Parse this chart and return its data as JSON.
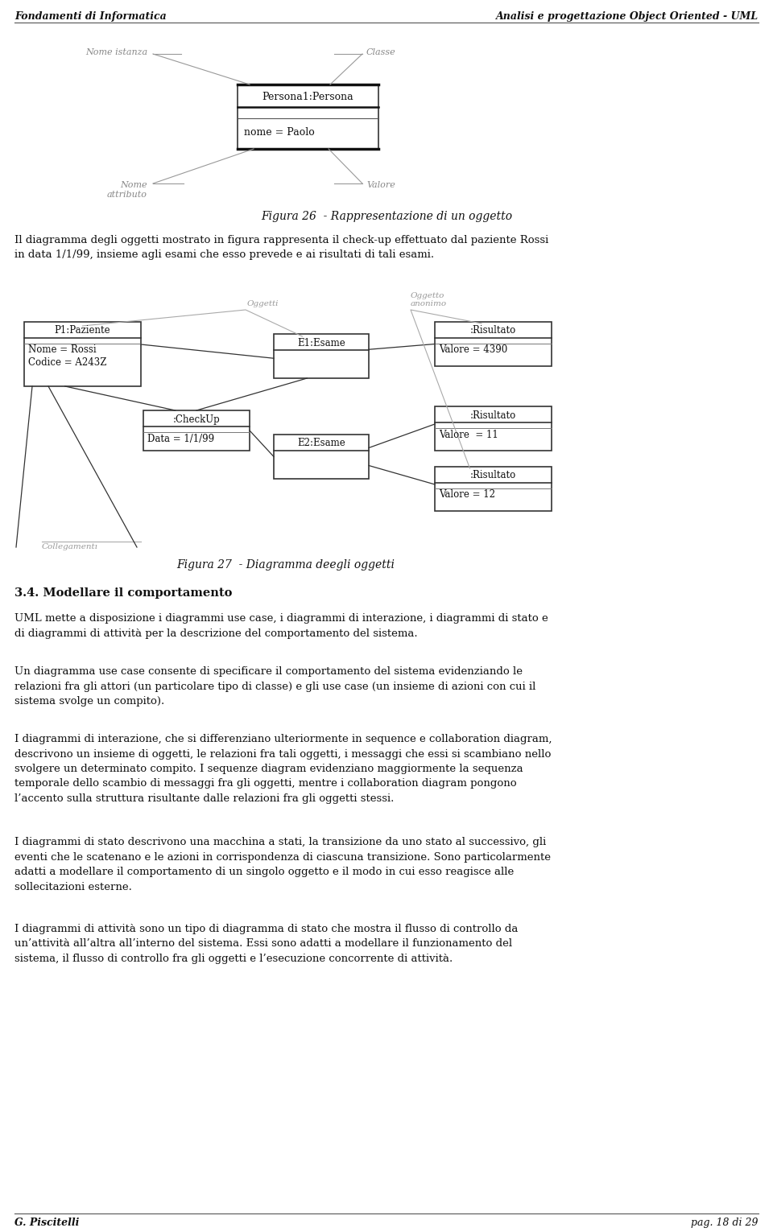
{
  "bg_color": "#ffffff",
  "header_left": "Fondamenti di Informatica",
  "header_right": "Analisi e progettazione Object Oriented - UML",
  "footer_left": "G. Piscitelli",
  "footer_right": "pag. 18 di 29",
  "fig26_caption": "Figura 26  - Rappresentazione di un oggetto",
  "fig27_caption": "Figura 27  - Diagramma deegli oggetti",
  "para1": "Il diagramma degli oggetti mostrato in figura rappresenta il check-up effettuato dal paziente Rossi\nin data 1/1/99, insieme agli esami che esso prevede e ai risultati di tali esami.",
  "section_title": "3.4. Modellare il comportamento",
  "para2": "UML mette a disposizione i diagrammi use case, i diagrammi di interazione, i diagrammi di stato e\ndi diagrammi di attività per la descrizione del comportamento del sistema.",
  "para3": "Un diagramma use case consente di specificare il comportamento del sistema evidenziando le\nrelazioni fra gli attori (un particolare tipo di classe) e gli use case (un insieme di azioni con cui il\nsistema svolge un compito).",
  "para4": "I diagrammi di interazione, che si differenziano ulteriormente in sequence e collaboration diagram,\ndescrivono un insieme di oggetti, le relazioni fra tali oggetti, i messaggi che essi si scambiano nello\nsvolgere un determinato compito. I sequenze diagram evidenziano maggiormente la sequenza\ntemporale dello scambio di messaggi fra gli oggetti, mentre i collaboration diagram pongono\nl’accento sulla struttura risultante dalle relazioni fra gli oggetti stessi.",
  "para5": "I diagrammi di stato descrivono una macchina a stati, la transizione da uno stato al successivo, gli\neventi che le scatenano e le azioni in corrispondenza di ciascuna transizione. Sono particolarmente\nadatti a modellare il comportamento di un singolo oggetto e il modo in cui esso reagisce alle\nsollecitazioni esterne.",
  "para6": "I diagrammi di attività sono un tipo di diagramma di stato che mostra il flusso di controllo da\nun’attività all’altra all’interno del sistema. Essi sono adatti a modellare il funzionamento del\nsistema, il flusso di controllo fra gli oggetti e l’esecuzione concorrente di attività."
}
